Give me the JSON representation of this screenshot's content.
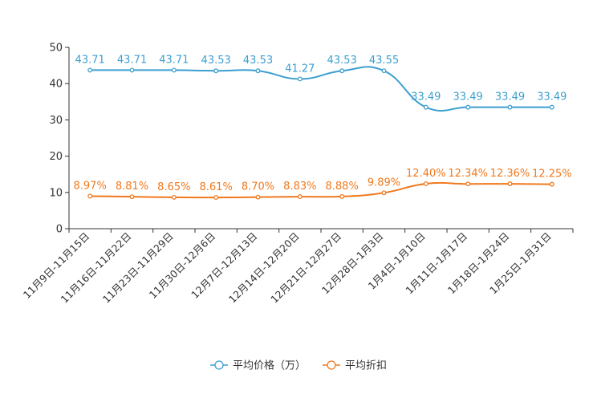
{
  "chart_data": {
    "type": "line",
    "categories": [
      "11月9日-11月15日",
      "11月16日-11月22日",
      "11月23日-11月29日",
      "11月30日-12月6日",
      "12月7日-12月13日",
      "12月14日-12月20日",
      "12月21日-12月27日",
      "12月28日-1月3日",
      "1月4日-1月10日",
      "1月11日-1月17日",
      "1月18日-1月24日",
      "1月25日-1月31日"
    ],
    "ylim": [
      0,
      50
    ],
    "yticks": [
      0,
      10,
      20,
      30,
      40,
      50
    ],
    "series": [
      {
        "name": "平均价格（万）",
        "color": "#3c9fd0",
        "values": [
          43.71,
          43.71,
          43.71,
          43.53,
          43.53,
          41.27,
          43.53,
          43.55,
          33.49,
          33.49,
          33.49,
          33.49
        ],
        "labels": [
          "43.71",
          "43.71",
          "43.71",
          "43.53",
          "43.53",
          "41.27",
          "43.53",
          "43.55",
          "33.49",
          "33.49",
          "33.49",
          "33.49"
        ]
      },
      {
        "name": "平均折扣",
        "color": "#f0791e",
        "values": [
          8.97,
          8.81,
          8.65,
          8.61,
          8.7,
          8.83,
          8.88,
          9.89,
          12.4,
          12.34,
          12.36,
          12.25
        ],
        "labels": [
          "8.97%",
          "8.81%",
          "8.65%",
          "8.61%",
          "8.70%",
          "8.83%",
          "8.88%",
          "9.89%",
          "12.40%",
          "12.34%",
          "12.36%",
          "12.25%"
        ]
      }
    ],
    "legend": "bottom-center"
  }
}
